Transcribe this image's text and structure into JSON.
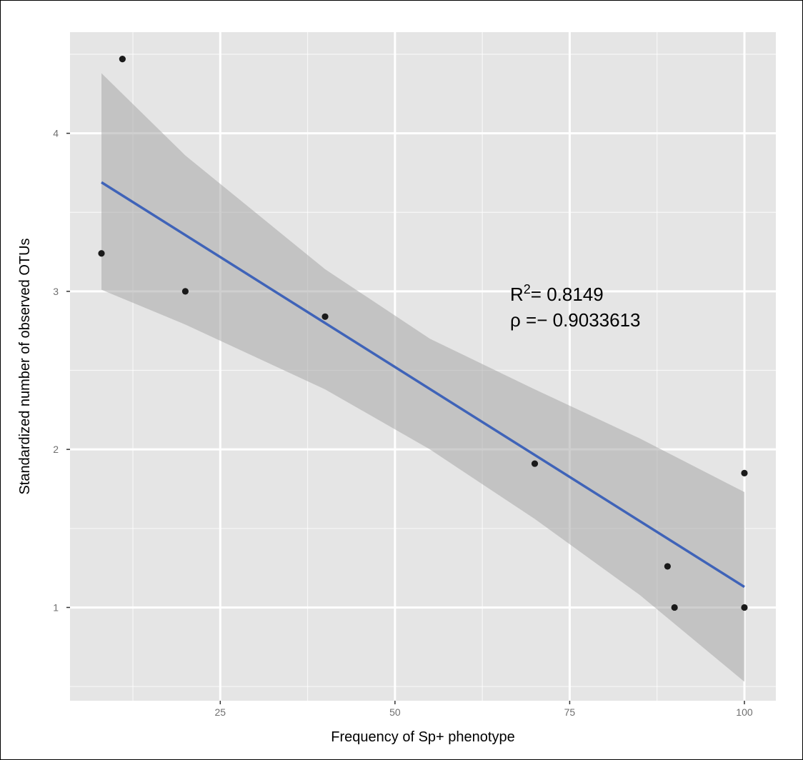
{
  "chart_data": {
    "type": "scatter",
    "title": "",
    "xlabel": "Frequency of Sp+ phenotype",
    "ylabel": "Standardized number of observed OTUs",
    "xlim": [
      3.5,
      104.5
    ],
    "ylim": [
      0.41,
      4.64
    ],
    "x_ticks": [
      25,
      50,
      75,
      100
    ],
    "x_tick_labels": [
      "25",
      "50",
      "75",
      "100"
    ],
    "y_ticks": [
      1,
      2,
      3,
      4
    ],
    "y_tick_labels": [
      "1",
      "2",
      "3",
      "4"
    ],
    "grid": true,
    "background_color": "#e5e5e5",
    "grid_color": "#ffffff",
    "point_color": "#1a1a1a",
    "line_color": "#3f63b8",
    "ribbon_color": "#a8a8a8",
    "points": [
      {
        "x": 8,
        "y": 3.24
      },
      {
        "x": 11,
        "y": 4.47
      },
      {
        "x": 20,
        "y": 3.0
      },
      {
        "x": 40,
        "y": 2.84
      },
      {
        "x": 70,
        "y": 1.91
      },
      {
        "x": 89,
        "y": 1.26
      },
      {
        "x": 90,
        "y": 1.0
      },
      {
        "x": 100,
        "y": 1.85
      },
      {
        "x": 100,
        "y": 1.0
      }
    ],
    "fit_line": {
      "x": [
        8,
        100
      ],
      "y": [
        3.69,
        1.13
      ]
    },
    "confidence_band": {
      "x": [
        8,
        20,
        40,
        55,
        70,
        85,
        100
      ],
      "upper": [
        4.38,
        3.86,
        3.14,
        2.7,
        2.38,
        2.07,
        1.73
      ],
      "lower": [
        3.01,
        2.79,
        2.38,
        2.0,
        1.56,
        1.08,
        0.53
      ]
    },
    "annotations": {
      "r2_label": "R",
      "r2_superscript": "2",
      "r2_value": "= 0.8149",
      "rho": "ρ =− 0.9033613"
    }
  }
}
